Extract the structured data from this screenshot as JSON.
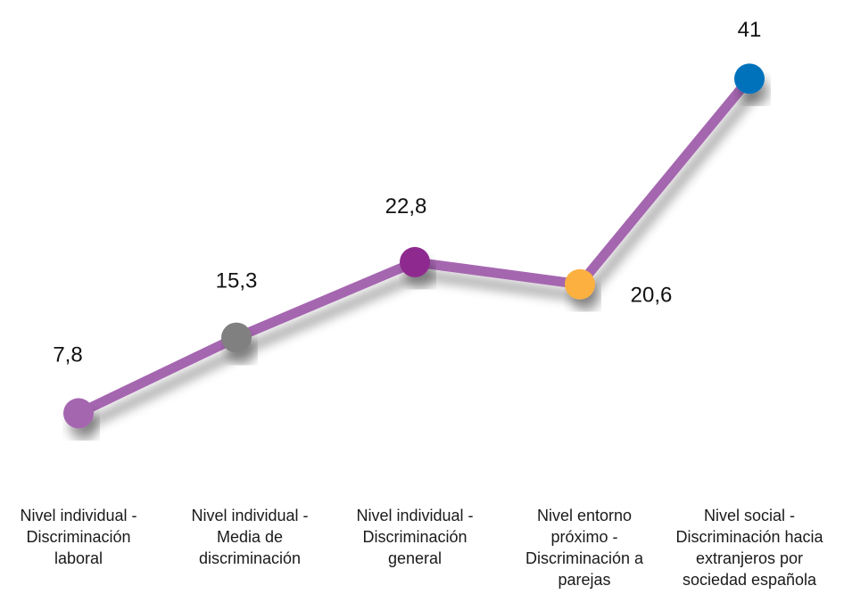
{
  "chart_data": {
    "type": "line",
    "title": "",
    "xlabel": "",
    "ylabel": "",
    "ylim": [
      0,
      45
    ],
    "grid": false,
    "legend": "none",
    "categories": [
      "Nivel individual - Discriminación laboral",
      "Nivel individual - Media de discriminación",
      "Nivel individual - Discriminación general",
      "Nivel entorno próximo - Discriminación a parejas",
      "Nivel social - Discriminación hacia extranjeros por sociedad española"
    ],
    "category_lines": [
      [
        "Nivel individual -",
        "Discriminación",
        "laboral"
      ],
      [
        "Nivel individual -",
        "Media de",
        "discriminación"
      ],
      [
        "Nivel individual -",
        "Discriminación",
        "general"
      ],
      [
        "Nivel entorno",
        "próximo -",
        "Discriminación a",
        "parejas"
      ],
      [
        "Nivel social -",
        "Discriminación hacia",
        "extranjeros por",
        "sociedad española"
      ]
    ],
    "values": [
      7.8,
      15.3,
      22.8,
      20.6,
      41
    ],
    "value_labels": [
      "7,8",
      "15,3",
      "22,8",
      "20,6",
      "41"
    ],
    "line_color": "#a566b0",
    "point_colors": [
      "#a566b0",
      "#808080",
      "#8e2a8f",
      "#fbb040",
      "#0072bc"
    ]
  }
}
